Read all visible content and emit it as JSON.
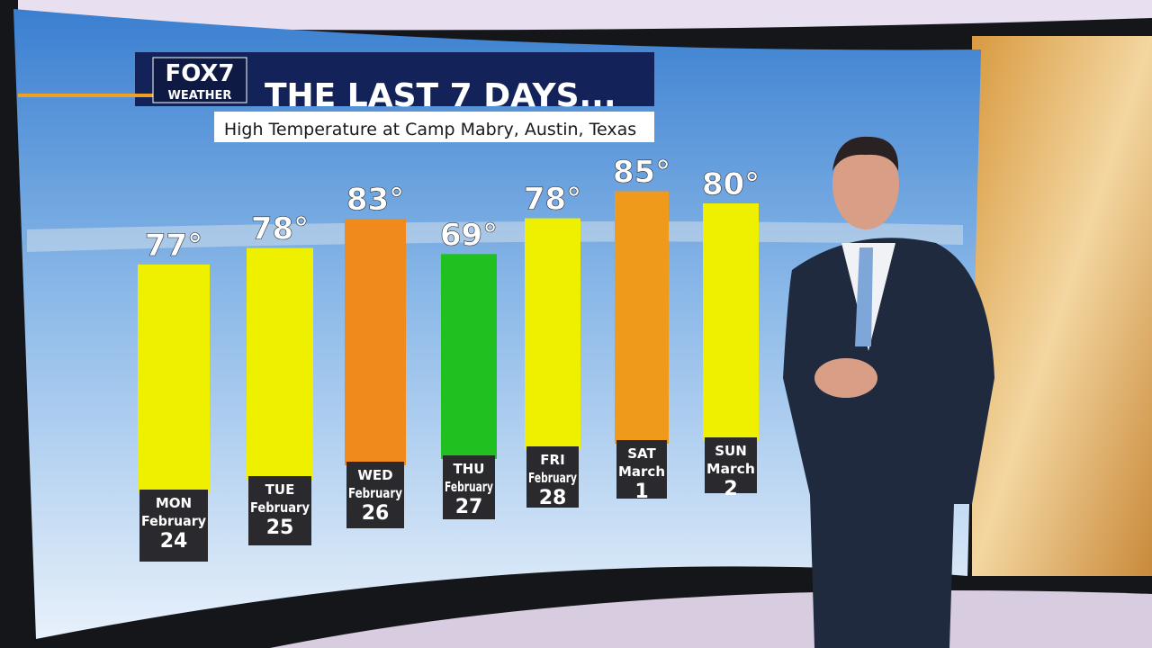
{
  "chart_data": {
    "type": "bar",
    "logo": "FOX7",
    "logo_sub": "WEATHER",
    "title": "THE LAST 7 DAYS...",
    "subtitle": "High Temperature at Camp Mabry, Austin, Texas",
    "categories": [
      "MON",
      "TUE",
      "WED",
      "THU",
      "FRI",
      "SAT",
      "SUN"
    ],
    "months": [
      "February",
      "February",
      "February",
      "February",
      "February",
      "March",
      "March"
    ],
    "dates": [
      "24",
      "25",
      "26",
      "27",
      "28",
      "1",
      "2"
    ],
    "values": [
      77,
      78,
      83,
      69,
      78,
      85,
      80
    ],
    "value_labels": [
      "77°",
      "78°",
      "83°",
      "69°",
      "78°",
      "85°",
      "80°"
    ],
    "colors": [
      "#eef000",
      "#eef000",
      "#f08a1c",
      "#20c020",
      "#eef000",
      "#f09a1c",
      "#eef000"
    ]
  }
}
